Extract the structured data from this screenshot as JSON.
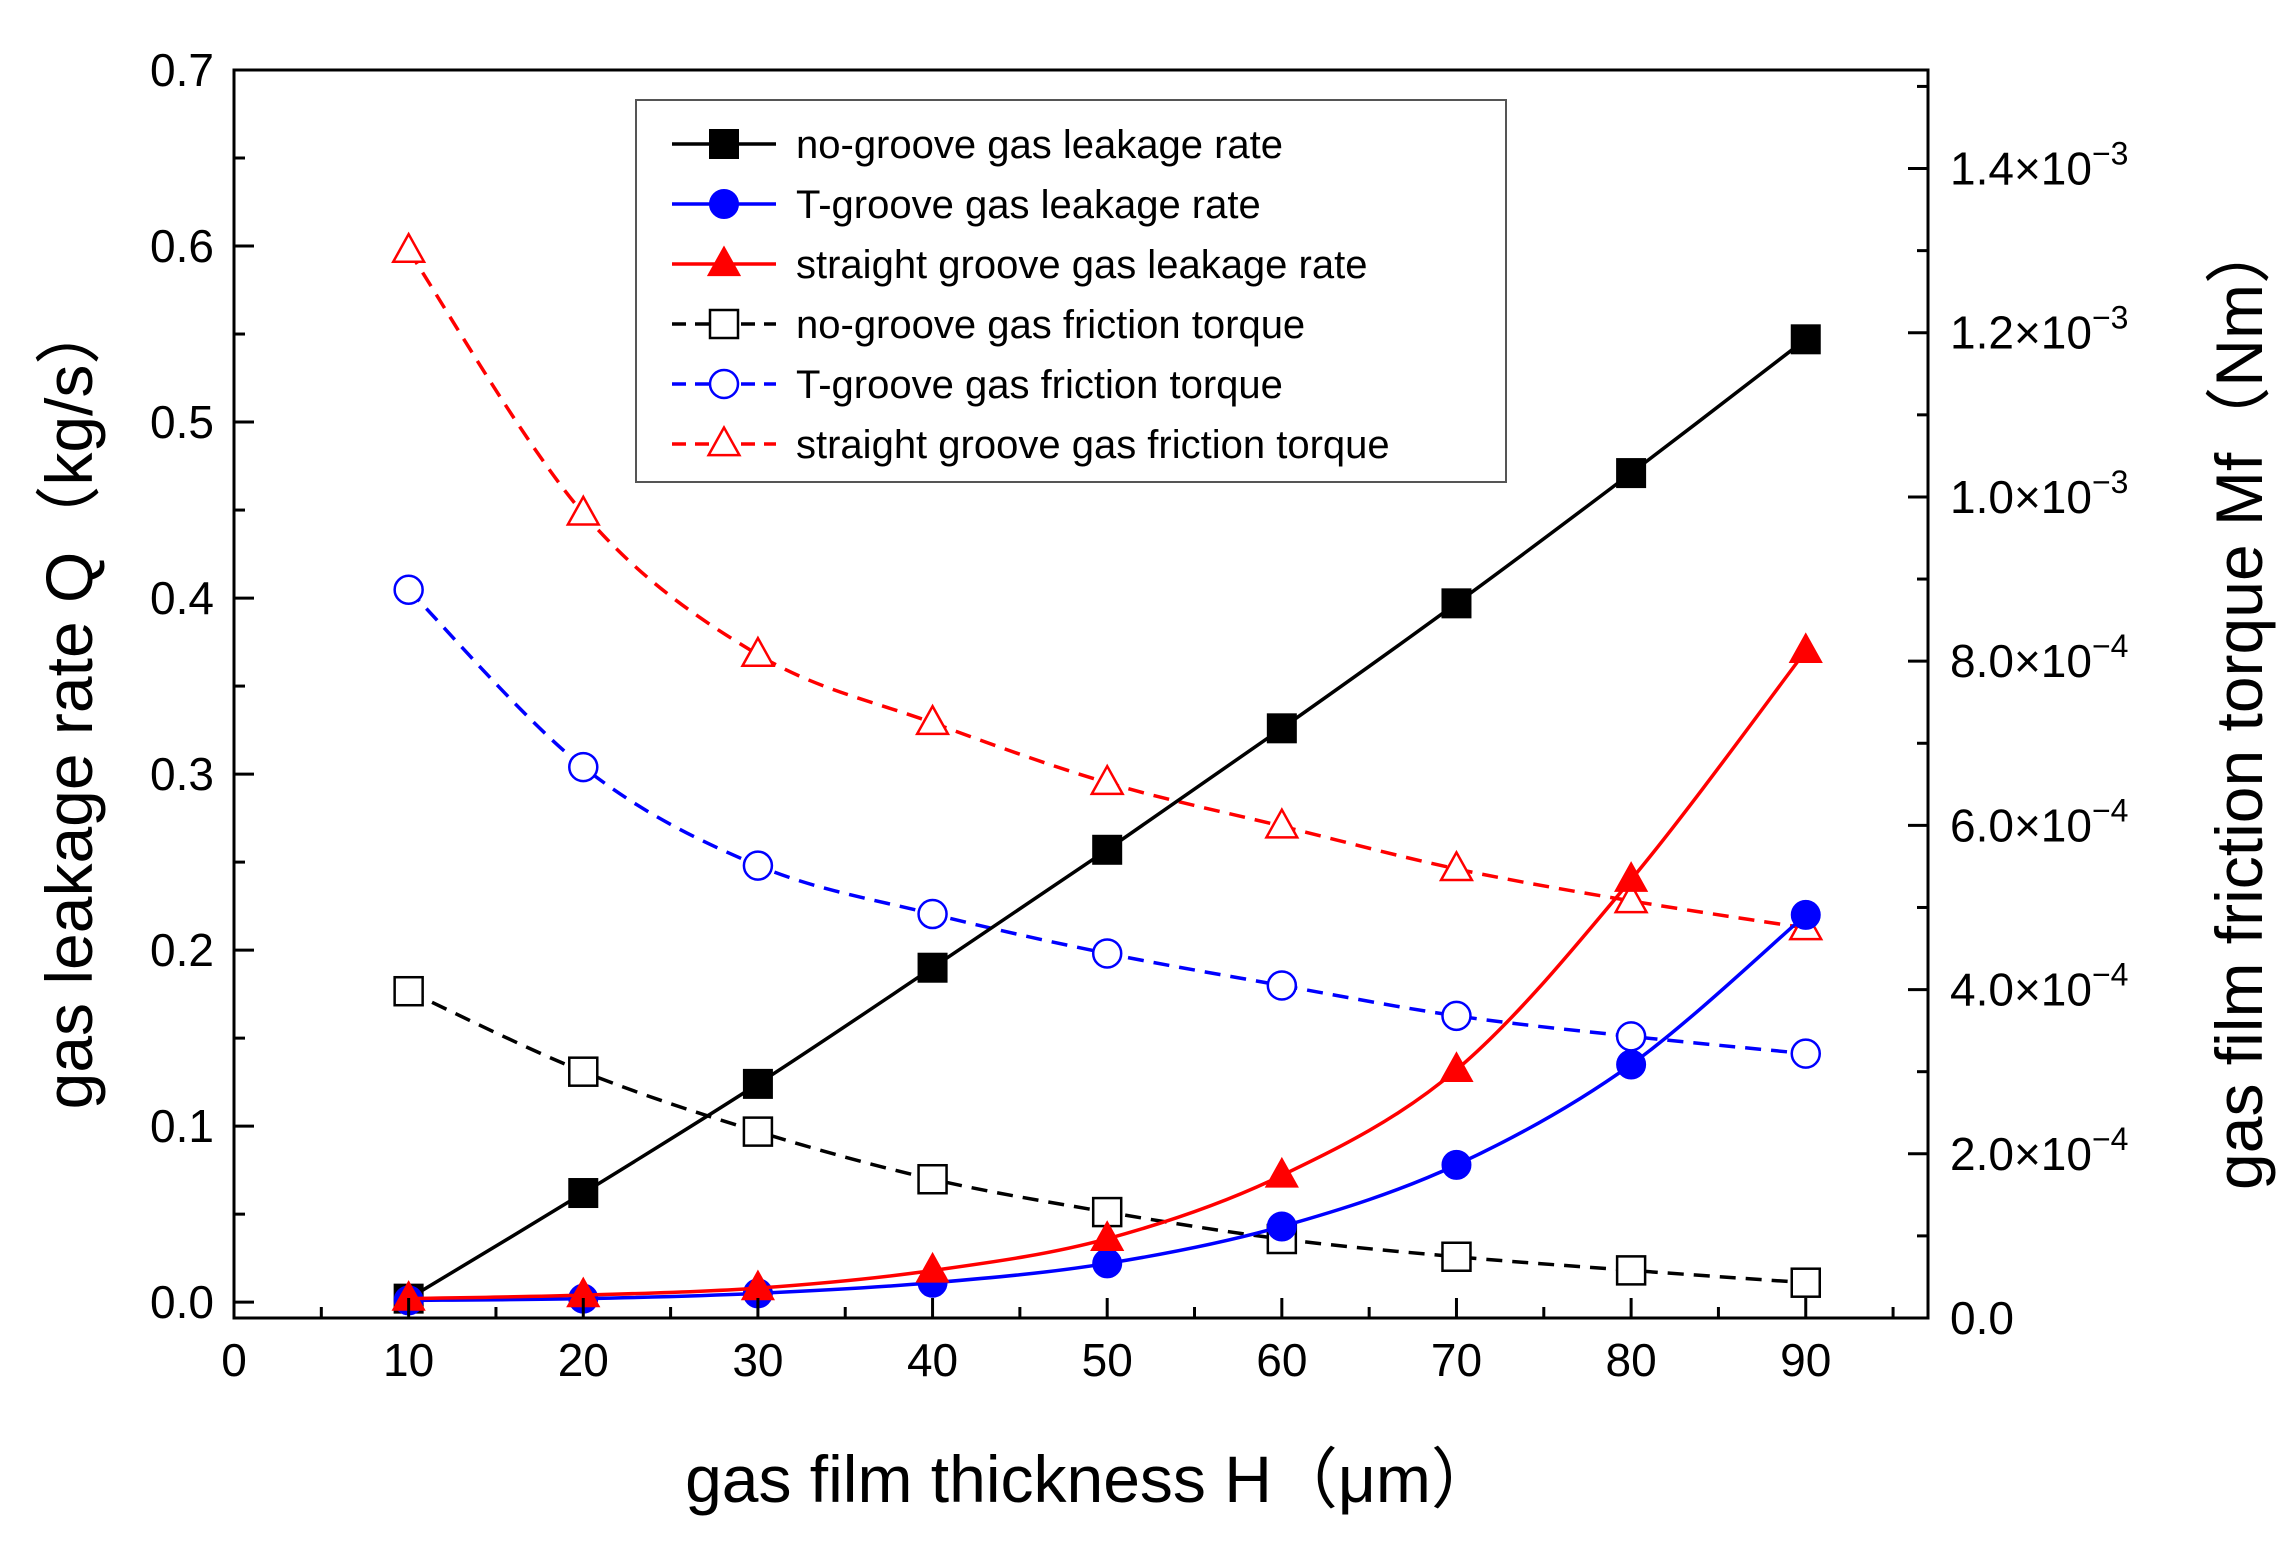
{
  "chart_data": {
    "type": "line",
    "xlabel": "gas film thickness H（μm）",
    "ylabel": "gas leakage rate Q（kg/s）",
    "y2label": "gas film friction torque Mf（Nm）",
    "xlim": [
      0,
      97
    ],
    "ylim": [
      -0.009,
      0.7
    ],
    "y2lim": [
      0,
      0.00152
    ],
    "x_ticks": [
      0,
      10,
      20,
      30,
      40,
      50,
      60,
      70,
      80,
      90
    ],
    "x_tick_labels": [
      "0",
      "10",
      "20",
      "30",
      "40",
      "50",
      "60",
      "70",
      "80",
      "90"
    ],
    "y_ticks": [
      0.0,
      0.1,
      0.2,
      0.3,
      0.4,
      0.5,
      0.6,
      0.7
    ],
    "y_tick_labels": [
      "0.0",
      "0.1",
      "0.2",
      "0.3",
      "0.4",
      "0.5",
      "0.6",
      "0.7"
    ],
    "y2_ticks": [
      0.0,
      0.0002,
      0.0004,
      0.0006,
      0.0008,
      0.001,
      0.0012,
      0.0014
    ],
    "y2_tick_labels": [
      {
        "mant": "0.0",
        "exp": ""
      },
      {
        "mant": "2.0×10",
        "exp": "−4"
      },
      {
        "mant": "4.0×10",
        "exp": "−4"
      },
      {
        "mant": "6.0×10",
        "exp": "−4"
      },
      {
        "mant": "8.0×10",
        "exp": "−4"
      },
      {
        "mant": "1.0×10",
        "exp": "−3"
      },
      {
        "mant": "1.2×10",
        "exp": "−3"
      },
      {
        "mant": "1.4×10",
        "exp": "−3"
      }
    ],
    "x": [
      10,
      20,
      30,
      40,
      50,
      60,
      70,
      80,
      90
    ],
    "series": [
      {
        "name": "no-groove gas leakage rate",
        "axis": "left",
        "color": "#000000",
        "marker": "square",
        "filled": true,
        "dash": false,
        "values": [
          0.002,
          0.062,
          0.124,
          0.19,
          0.257,
          0.326,
          0.397,
          0.471,
          0.547
        ]
      },
      {
        "name": "T-groove gas leakage rate",
        "axis": "left",
        "color": "#0000ff",
        "marker": "circle",
        "filled": true,
        "dash": false,
        "values": [
          0.001,
          0.002,
          0.005,
          0.011,
          0.022,
          0.043,
          0.078,
          0.135,
          0.22
        ]
      },
      {
        "name": "straight groove gas leakage rate",
        "axis": "left",
        "color": "#ff0000",
        "marker": "triangle",
        "filled": true,
        "dash": false,
        "values": [
          0.002,
          0.004,
          0.008,
          0.018,
          0.036,
          0.072,
          0.132,
          0.24,
          0.37
        ]
      },
      {
        "name": "no-groove gas friction torque",
        "axis": "right",
        "color": "#000000",
        "marker": "square",
        "filled": false,
        "dash": true,
        "values": [
          0.000398,
          0.0003,
          0.000227,
          0.000169,
          0.000129,
          9.62e-05,
          7.46e-05,
          5.8e-05,
          4.3e-05
        ]
      },
      {
        "name": "T-groove gas friction torque",
        "axis": "right",
        "color": "#0000ff",
        "marker": "circle",
        "filled": false,
        "dash": true,
        "values": [
          0.000887,
          0.000671,
          0.000551,
          0.000492,
          0.000444,
          0.000405,
          0.000368,
          0.000343,
          0.000322
        ]
      },
      {
        "name": "straight groove gas friction torque",
        "axis": "right",
        "color": "#ff0000",
        "marker": "triangle",
        "filled": false,
        "dash": true,
        "values": [
          0.0013,
          0.00098,
          0.000808,
          0.000725,
          0.000652,
          0.000599,
          0.000547,
          0.000508,
          0.000475
        ]
      }
    ],
    "legend": {
      "position": "top-center"
    }
  }
}
